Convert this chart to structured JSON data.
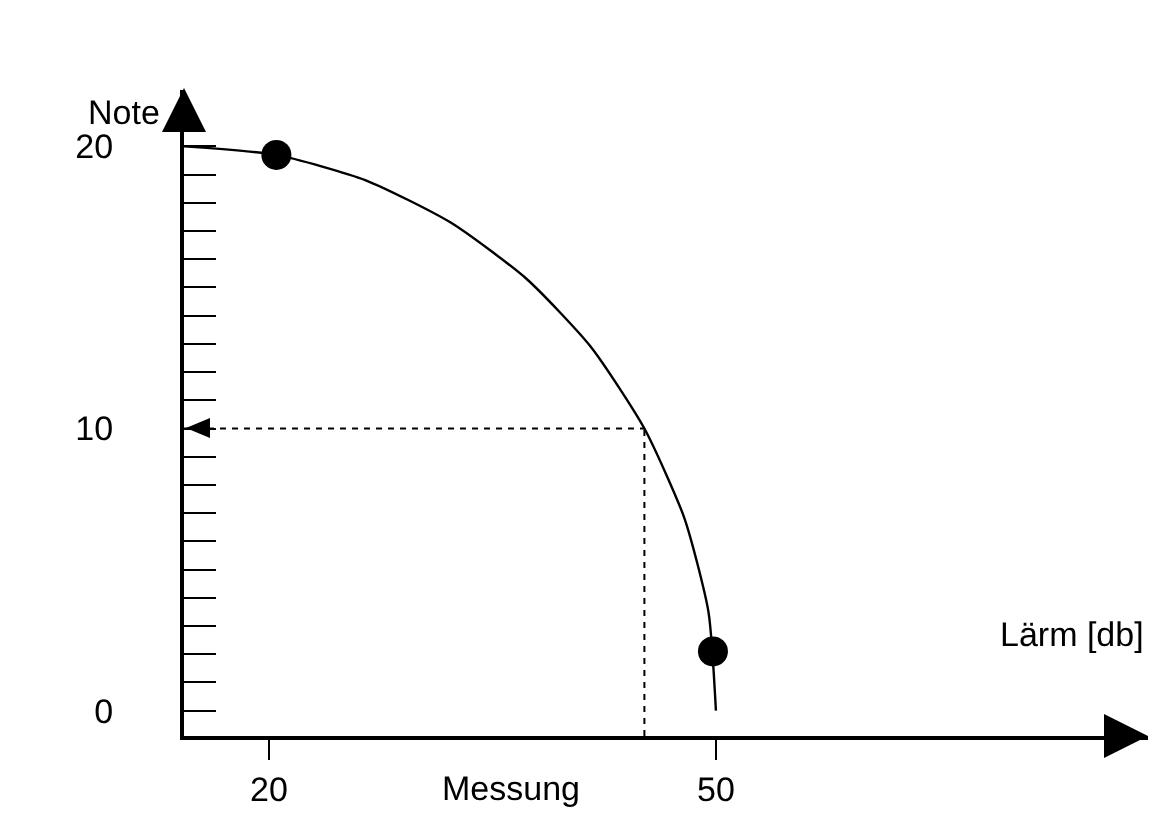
{
  "chart_data": {
    "type": "line",
    "xlabel": "Lärm [db]",
    "ylabel": "Note",
    "annotations": [
      "Messung"
    ],
    "xlim": [
      14.3,
      79
    ],
    "ylim": [
      -0.9,
      22
    ],
    "xticks": [
      20,
      50
    ],
    "yticks": [
      0,
      {
        "value": 1,
        "label": null
      },
      {
        "value": 2,
        "label": null
      },
      {
        "value": 3,
        "label": null
      },
      {
        "value": 4,
        "label": null
      },
      {
        "value": 5,
        "label": null
      },
      {
        "value": 6,
        "label": null
      },
      {
        "value": 7,
        "label": null
      },
      {
        "value": 8,
        "label": null
      },
      {
        "value": 9,
        "label": null
      },
      10,
      {
        "value": 11,
        "label": null
      },
      {
        "value": 12,
        "label": null
      },
      {
        "value": 13,
        "label": null
      },
      {
        "value": 14,
        "label": null
      },
      {
        "value": 15,
        "label": null
      },
      {
        "value": 16,
        "label": null
      },
      {
        "value": 17,
        "label": null
      },
      {
        "value": 18,
        "label": null
      },
      {
        "value": 19,
        "label": null
      },
      20
    ],
    "grid": false,
    "series": [
      {
        "type": "line",
        "color": "#000000",
        "marker": "none",
        "line_style": "solid",
        "x": [
          14.3,
          20.5,
          26.5,
          32.2,
          37.3,
          41.6,
          45.2,
          47.9,
          49.5,
          50
        ],
        "values": [
          20,
          19.7,
          18.8,
          17.3,
          15.3,
          12.9,
          10,
          6.8,
          3.5,
          0
        ]
      },
      {
        "type": "scatter",
        "color": "#000000",
        "marker": "circle",
        "x": [
          20.5,
          49.8
        ],
        "values": [
          19.7,
          2.1
        ]
      }
    ],
    "ref_lines": [
      {
        "axis": "y",
        "value": 10,
        "line_style": "dotted",
        "color": "#000000"
      },
      {
        "axis": "x",
        "value": 45.2,
        "line_style": "dotted",
        "color": "#000000"
      }
    ]
  }
}
